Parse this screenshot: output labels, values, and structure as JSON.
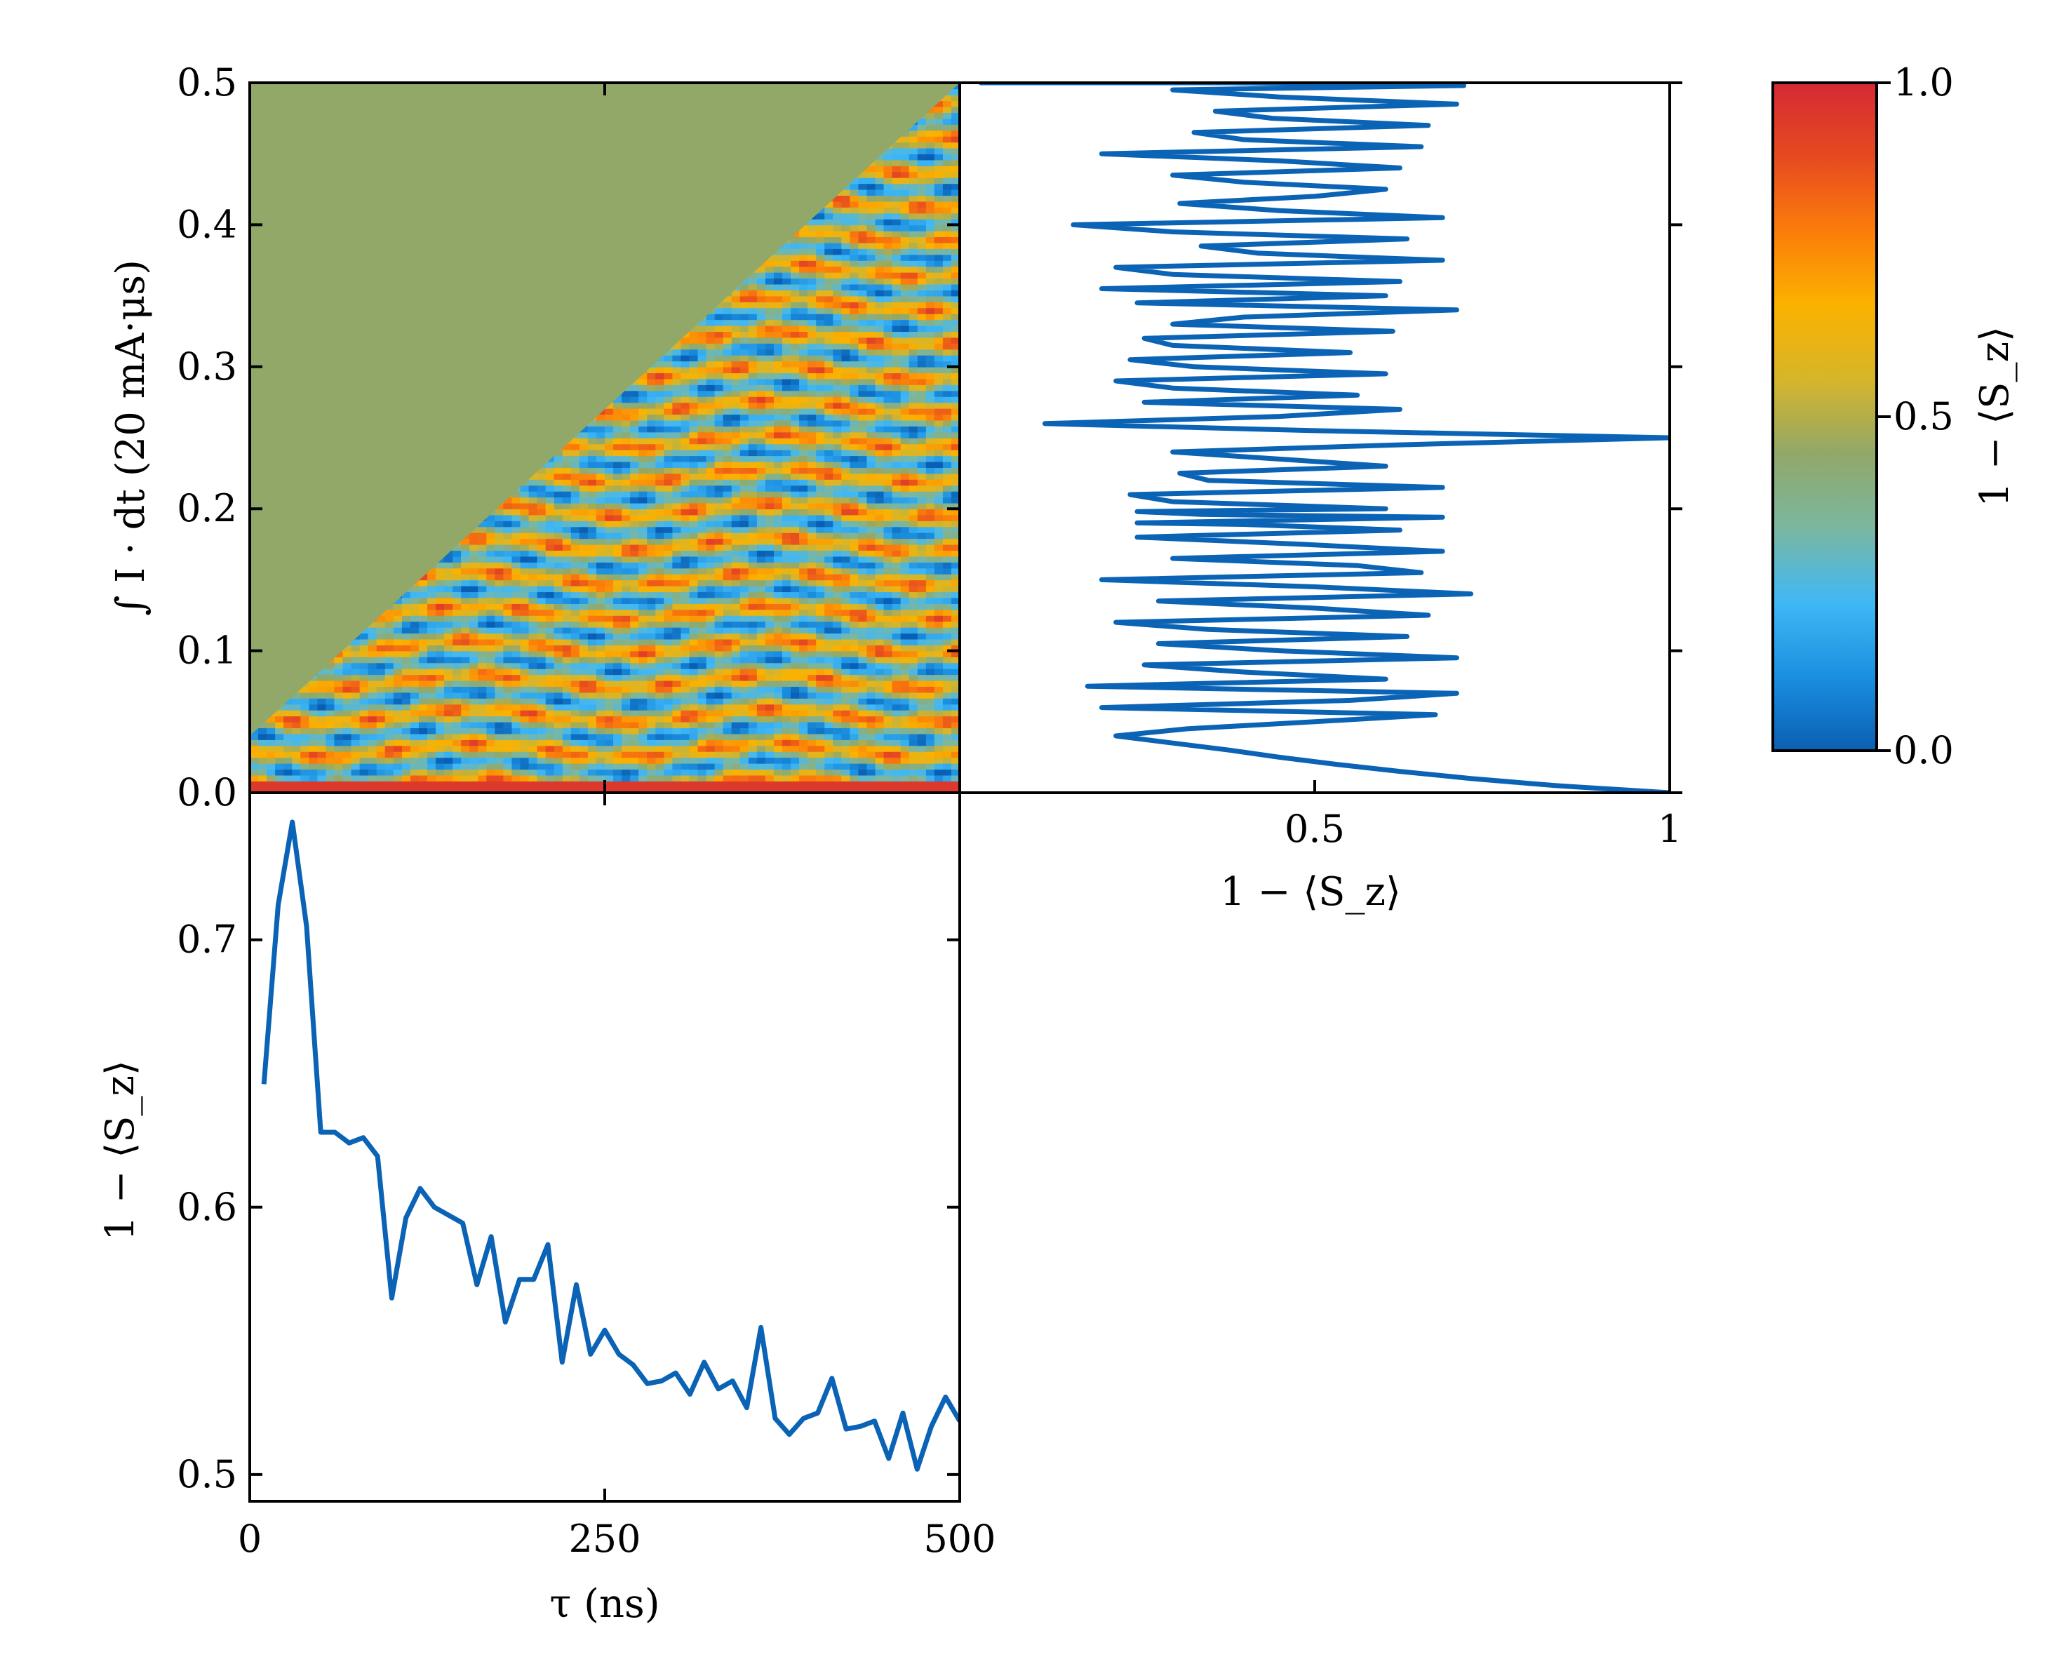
{
  "colors": {
    "line": "#0a63b5",
    "masked_region": "#91a869",
    "frame": "#000000",
    "colormap": [
      "#0a5fb3",
      "#1b8fe0",
      "#40b8f5",
      "#7bb7a0",
      "#91a869",
      "#d6b52a",
      "#fbb200",
      "#fb7d0a",
      "#e64a20",
      "#d62935"
    ]
  },
  "chart_data": [
    {
      "id": "heatmap",
      "type": "heatmap",
      "title": "",
      "xlabel": "",
      "ylabel": "∫ I · dt (20 mA·μs)",
      "xlim": [
        0,
        500
      ],
      "ylim": [
        0,
        0.5
      ],
      "yticks": [
        "0.0",
        "0.1",
        "0.2",
        "0.3",
        "0.4",
        "0.5"
      ],
      "yticks_values": [
        0.0,
        0.1,
        0.2,
        0.3,
        0.4,
        0.5
      ],
      "xticks_values": [
        0,
        250,
        500
      ],
      "masked_boundary": {
        "tau": [
          0,
          500
        ],
        "integral": [
          0.04,
          0.5
        ]
      },
      "masked_value": 0.5,
      "colorbar": {
        "label": "1 − ⟨S_z⟩",
        "vmin": 0.0,
        "vmax": 1.0,
        "ticks": [
          "0.0",
          "0.5",
          "1.0"
        ],
        "tick_values": [
          0.0,
          0.5,
          1.0
        ]
      }
    },
    {
      "id": "right-profile",
      "type": "line",
      "xlabel": "1 − ⟨S_z⟩",
      "ylabel": "",
      "xlim": [
        0,
        1
      ],
      "ylim": [
        0,
        0.5
      ],
      "xticks": [
        "0.5",
        "1"
      ],
      "xticks_values": [
        0.5,
        1.0
      ],
      "x": [
        1.0,
        0.84,
        0.72,
        0.62,
        0.53,
        0.45,
        0.38,
        0.3,
        0.22,
        0.32,
        0.5,
        0.67,
        0.2,
        0.55,
        0.7,
        0.18,
        0.6,
        0.4,
        0.26,
        0.7,
        0.45,
        0.28,
        0.63,
        0.35,
        0.22,
        0.66,
        0.5,
        0.28,
        0.72,
        0.5,
        0.2,
        0.65,
        0.56,
        0.3,
        0.68,
        0.48,
        0.25,
        0.62,
        0.4,
        0.25,
        0.68,
        0.34,
        0.25,
        0.6,
        0.3,
        0.24,
        0.68,
        0.35,
        0.31,
        0.6,
        0.45,
        0.3,
        0.62,
        1.0,
        0.5,
        0.12,
        0.45,
        0.62,
        0.26,
        0.56,
        0.3,
        0.22,
        0.6,
        0.33,
        0.24,
        0.55,
        0.3,
        0.26,
        0.61,
        0.3,
        0.4,
        0.7,
        0.25,
        0.6,
        0.2,
        0.62,
        0.3,
        0.22,
        0.68,
        0.42,
        0.34,
        0.63,
        0.3,
        0.16,
        0.68,
        0.45,
        0.31,
        0.5,
        0.6,
        0.4,
        0.3,
        0.62,
        0.45,
        0.2,
        0.65,
        0.4,
        0.33,
        0.66,
        0.44,
        0.36,
        0.7,
        0.45,
        0.3,
        0.71,
        0.38,
        0.24,
        0.65,
        0.33,
        0.29,
        0.62,
        0.35,
        0.28,
        0.65,
        0.25,
        0.5,
        0.03,
        0.3
      ],
      "y": [
        0.0,
        0.005,
        0.01,
        0.015,
        0.02,
        0.025,
        0.03,
        0.035,
        0.04,
        0.045,
        0.05,
        0.055,
        0.06,
        0.065,
        0.07,
        0.075,
        0.08,
        0.085,
        0.09,
        0.095,
        0.1,
        0.105,
        0.11,
        0.115,
        0.12,
        0.125,
        0.13,
        0.135,
        0.14,
        0.145,
        0.15,
        0.155,
        0.16,
        0.165,
        0.17,
        0.175,
        0.18,
        0.185,
        0.189,
        0.19,
        0.194,
        0.196,
        0.198,
        0.2,
        0.205,
        0.21,
        0.215,
        0.22,
        0.225,
        0.23,
        0.235,
        0.24,
        0.245,
        0.25,
        0.255,
        0.26,
        0.265,
        0.27,
        0.275,
        0.28,
        0.285,
        0.29,
        0.295,
        0.3,
        0.305,
        0.31,
        0.315,
        0.32,
        0.325,
        0.33,
        0.335,
        0.34,
        0.345,
        0.35,
        0.355,
        0.36,
        0.365,
        0.37,
        0.375,
        0.38,
        0.385,
        0.39,
        0.395,
        0.4,
        0.405,
        0.41,
        0.415,
        0.42,
        0.425,
        0.43,
        0.435,
        0.44,
        0.445,
        0.45,
        0.455,
        0.46,
        0.465,
        0.47,
        0.475,
        0.48,
        0.485,
        0.49,
        0.495,
        0.498,
        0.5,
        0.5,
        0.5,
        0.5,
        0.5,
        0.5,
        0.5,
        0.5,
        0.5,
        0.5,
        0.5,
        0.5,
        0.5
      ]
    },
    {
      "id": "bottom-profile",
      "type": "line",
      "xlabel": "τ (ns)",
      "ylabel": "1 − ⟨S_z⟩",
      "xlim": [
        0,
        500
      ],
      "ylim": [
        0.49,
        0.755
      ],
      "xticks": [
        "0",
        "250",
        "500"
      ],
      "xticks_values": [
        0,
        250,
        500
      ],
      "yticks": [
        "0.5",
        "0.6",
        "0.7"
      ],
      "yticks_values": [
        0.5,
        0.6,
        0.7
      ],
      "x": [
        10,
        20,
        30,
        40,
        50,
        60,
        70,
        80,
        90,
        100,
        110,
        120,
        130,
        140,
        150,
        160,
        170,
        180,
        190,
        200,
        210,
        220,
        230,
        240,
        250,
        260,
        270,
        280,
        290,
        300,
        310,
        320,
        330,
        340,
        350,
        360,
        370,
        380,
        390,
        400,
        410,
        420,
        430,
        440,
        450,
        460,
        470,
        480,
        490,
        500
      ],
      "y": [
        0.646,
        0.713,
        0.744,
        0.705,
        0.628,
        0.628,
        0.624,
        0.626,
        0.619,
        0.566,
        0.596,
        0.607,
        0.6,
        0.597,
        0.594,
        0.571,
        0.589,
        0.557,
        0.573,
        0.573,
        0.586,
        0.542,
        0.571,
        0.545,
        0.554,
        0.545,
        0.541,
        0.534,
        0.535,
        0.538,
        0.53,
        0.542,
        0.532,
        0.535,
        0.525,
        0.555,
        0.521,
        0.515,
        0.521,
        0.523,
        0.536,
        0.517,
        0.518,
        0.52,
        0.506,
        0.523,
        0.502,
        0.518,
        0.529,
        0.52
      ]
    }
  ]
}
